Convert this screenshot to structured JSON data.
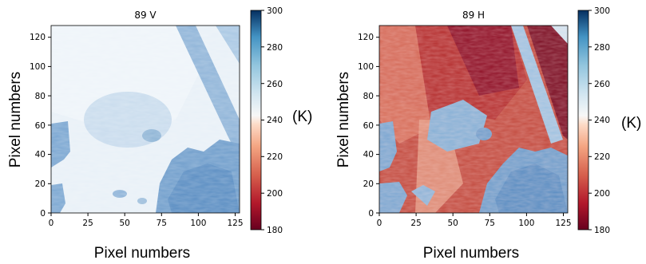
{
  "chart_data": [
    {
      "type": "heatmap",
      "title": "89 V",
      "xlabel": "Pixel numbers",
      "ylabel": "Pixel numbers",
      "xlim": [
        0,
        128
      ],
      "ylim": [
        0,
        128
      ],
      "x_ticks": [
        "0",
        "25",
        "50",
        "75",
        "100",
        "125"
      ],
      "y_ticks": [
        "0",
        "20",
        "40",
        "60",
        "80",
        "100",
        "120"
      ],
      "colorbar": {
        "min": 180,
        "max": 300,
        "ticks": [
          "180",
          "200",
          "220",
          "240",
          "260",
          "280",
          "300"
        ],
        "colormap": "RdBu",
        "unit": "(K)"
      }
    },
    {
      "type": "heatmap",
      "title": "89 H",
      "xlabel": "Pixel numbers",
      "ylabel": "Pixel numbers",
      "xlim": [
        0,
        128
      ],
      "ylim": [
        0,
        128
      ],
      "x_ticks": [
        "0",
        "25",
        "50",
        "75",
        "100",
        "125"
      ],
      "y_ticks": [
        "0",
        "20",
        "40",
        "60",
        "80",
        "100",
        "120"
      ],
      "colorbar": {
        "min": 180,
        "max": 300,
        "ticks": [
          "180",
          "200",
          "220",
          "240",
          "260",
          "280",
          "300"
        ],
        "colormap": "RdBu",
        "unit": "(K)"
      }
    }
  ]
}
